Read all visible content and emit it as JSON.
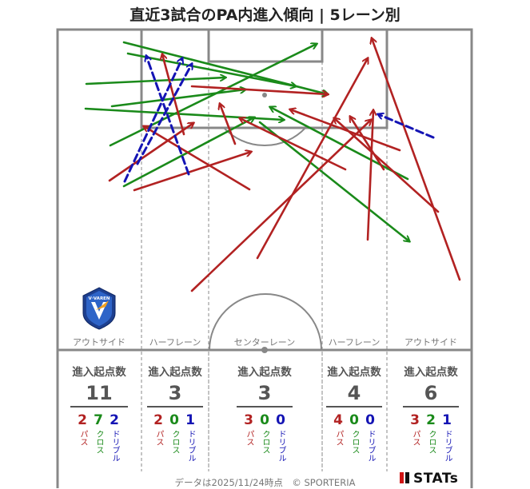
{
  "title": "直近3試合のPA内進入傾向 | 5レーン別",
  "lanes": [
    "アウトサイド",
    "ハーフレーン",
    "センターレーン",
    "ハーフレーン",
    "アウトサイド"
  ],
  "panel_header": "進入起点数",
  "legend": {
    "pass": "パス",
    "cross": "クロス",
    "dribble": "ドリブル"
  },
  "colors": {
    "pass": "#b22222",
    "cross": "#1a8a1a",
    "dribble": "#1414b4",
    "lines": "#888888"
  },
  "footer": "データは2025/11/24時点　© SPORTERIA",
  "brand": "STATs",
  "logo_text": "V·VAREN",
  "chart_data": {
    "type": "arrow-map",
    "title": "直近3試合のPA内進入傾向 | 5レーン別",
    "lane_totals": [
      {
        "lane": "アウトサイド",
        "total": 11,
        "pass": 2,
        "cross": 7,
        "dribble": 2
      },
      {
        "lane": "ハーフレーン",
        "total": 3,
        "pass": 2,
        "cross": 0,
        "dribble": 1
      },
      {
        "lane": "センターレーン",
        "total": 3,
        "pass": 3,
        "cross": 0,
        "dribble": 0
      },
      {
        "lane": "ハーフレーン",
        "total": 4,
        "pass": 4,
        "cross": 0,
        "dribble": 0
      },
      {
        "lane": "アウトサイド",
        "total": 6,
        "pass": 3,
        "cross": 2,
        "dribble": 1
      }
    ],
    "arrows": [
      {
        "type": "cross",
        "from": [
          155,
          53
        ],
        "to": [
          410,
          118
        ]
      },
      {
        "type": "cross",
        "from": [
          160,
          67
        ],
        "to": [
          370,
          108
        ]
      },
      {
        "type": "cross",
        "from": [
          108,
          105
        ],
        "to": [
          282,
          97
        ]
      },
      {
        "type": "cross",
        "from": [
          140,
          133
        ],
        "to": [
          307,
          112
        ]
      },
      {
        "type": "cross",
        "from": [
          107,
          136
        ],
        "to": [
          355,
          150
        ]
      },
      {
        "type": "cross",
        "from": [
          138,
          182
        ],
        "to": [
          396,
          55
        ]
      },
      {
        "type": "cross",
        "from": [
          155,
          233
        ],
        "to": [
          318,
          147
        ]
      },
      {
        "type": "cross",
        "from": [
          325,
          153
        ],
        "to": [
          512,
          302
        ]
      },
      {
        "type": "cross",
        "from": [
          510,
          224
        ],
        "to": [
          338,
          134
        ]
      },
      {
        "type": "pass",
        "from": [
          240,
          108
        ],
        "to": [
          410,
          118
        ]
      },
      {
        "type": "pass",
        "from": [
          137,
          226
        ],
        "to": [
          242,
          154
        ]
      },
      {
        "type": "pass",
        "from": [
          230,
          168
        ],
        "to": [
          203,
          68
        ]
      },
      {
        "type": "pass",
        "from": [
          168,
          238
        ],
        "to": [
          314,
          190
        ]
      },
      {
        "type": "pass",
        "from": [
          312,
          237
        ],
        "to": [
          180,
          158
        ]
      },
      {
        "type": "pass",
        "from": [
          294,
          180
        ],
        "to": [
          275,
          130
        ]
      },
      {
        "type": "pass",
        "from": [
          432,
          212
        ],
        "to": [
          300,
          148
        ]
      },
      {
        "type": "pass",
        "from": [
          500,
          188
        ],
        "to": [
          363,
          137
        ]
      },
      {
        "type": "pass",
        "from": [
          548,
          265
        ],
        "to": [
          418,
          148
        ]
      },
      {
        "type": "pass",
        "from": [
          480,
          212
        ],
        "to": [
          438,
          146
        ]
      },
      {
        "type": "pass",
        "from": [
          575,
          350
        ],
        "to": [
          465,
          48
        ]
      },
      {
        "type": "pass",
        "from": [
          460,
          300
        ],
        "to": [
          467,
          138
        ]
      },
      {
        "type": "pass",
        "from": [
          322,
          323
        ],
        "to": [
          460,
          73
        ]
      },
      {
        "type": "pass",
        "from": [
          240,
          364
        ],
        "to": [
          464,
          150
        ]
      },
      {
        "type": "dribble",
        "from": [
          156,
          227
        ],
        "to": [
          228,
          73
        ]
      },
      {
        "type": "dribble",
        "from": [
          172,
          205
        ],
        "to": [
          240,
          80
        ]
      },
      {
        "type": "dribble",
        "from": [
          236,
          218
        ],
        "to": [
          183,
          70
        ]
      },
      {
        "type": "dribble",
        "from": [
          542,
          172
        ],
        "to": [
          473,
          143
        ]
      }
    ]
  }
}
